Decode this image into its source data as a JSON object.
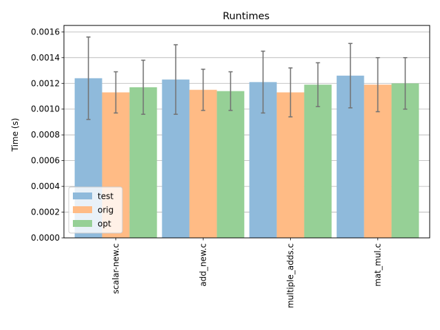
{
  "chart_data": {
    "type": "bar",
    "title": "Runtimes",
    "xlabel": "",
    "ylabel": "Time (s)",
    "ylim": [
      0,
      0.00165
    ],
    "yticks": [
      "0.0000",
      "0.0002",
      "0.0004",
      "0.0006",
      "0.0008",
      "0.0010",
      "0.0012",
      "0.0014",
      "0.0016"
    ],
    "grid": "horizontal",
    "legend_position": "lower-left",
    "categories": [
      "scalar-new.c",
      "add_new.c",
      "multiple_adds.c",
      "mat_mul.c"
    ],
    "series": [
      {
        "name": "test",
        "color": "#8fbadb",
        "values": [
          0.00124,
          0.00123,
          0.00121,
          0.00126
        ],
        "errors": [
          0.00032,
          0.00027,
          0.00024,
          0.00025
        ]
      },
      {
        "name": "orig",
        "color": "#ffbb85",
        "values": [
          0.00113,
          0.00115,
          0.00113,
          0.00119
        ],
        "errors": [
          0.00016,
          0.00016,
          0.00019,
          0.00021
        ]
      },
      {
        "name": "opt",
        "color": "#96d096",
        "values": [
          0.00117,
          0.00114,
          0.00119,
          0.0012
        ],
        "errors": [
          0.00021,
          0.00015,
          0.00017,
          0.0002
        ]
      }
    ]
  }
}
